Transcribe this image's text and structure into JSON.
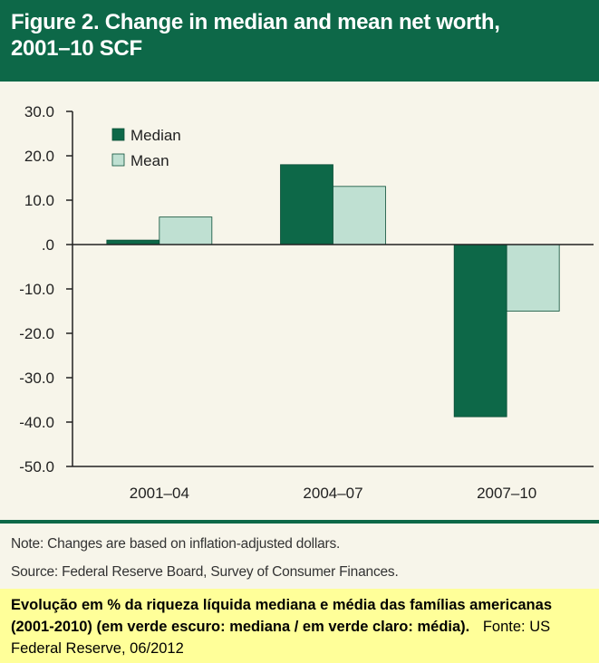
{
  "header": {
    "title_line1": "Figure 2. Change in median and mean net worth,",
    "title_line2": "2001–10 SCF"
  },
  "chart_data": {
    "type": "bar",
    "title": "Figure 2. Change in median and mean net worth, 2001–10 SCF",
    "categories": [
      "2001–04",
      "2004–07",
      "2007–10"
    ],
    "series": [
      {
        "name": "Median",
        "values": [
          1.0,
          18.0,
          -38.8
        ],
        "color": "#0d6848"
      },
      {
        "name": "Mean",
        "values": [
          6.2,
          13.1,
          -15.0
        ],
        "color": "#bfe0d2"
      }
    ],
    "ylim": [
      -50,
      30
    ],
    "yticks": [
      30,
      20,
      10,
      0,
      -10,
      -20,
      -30,
      -40,
      -50
    ],
    "ytick_labels": [
      "30.0",
      "20.0",
      "10.0",
      ".0",
      "-10.0",
      "-20.0",
      "-30.0",
      "-40.0",
      "-50.0"
    ],
    "xlabel": "",
    "ylabel": "",
    "legend_position": "top-left"
  },
  "notes": {
    "note": "Note: Changes are based on inflation-adjusted dollars.",
    "source": "Source: Federal Reserve Board, Survey of Consumer Finances."
  },
  "caption": {
    "text": "Evolução em % da riqueza líquida mediana e média das famílias americanas (2001-2010)  (em  verde escuro: mediana / em verde claro: média).",
    "source": "Fonte: US Federal Reserve, 06/2012"
  },
  "colors": {
    "brand_green": "#0d6848",
    "light_green": "#bfe0d2",
    "panel_bg": "#f7f5ea",
    "caption_bg": "#ffff99"
  }
}
